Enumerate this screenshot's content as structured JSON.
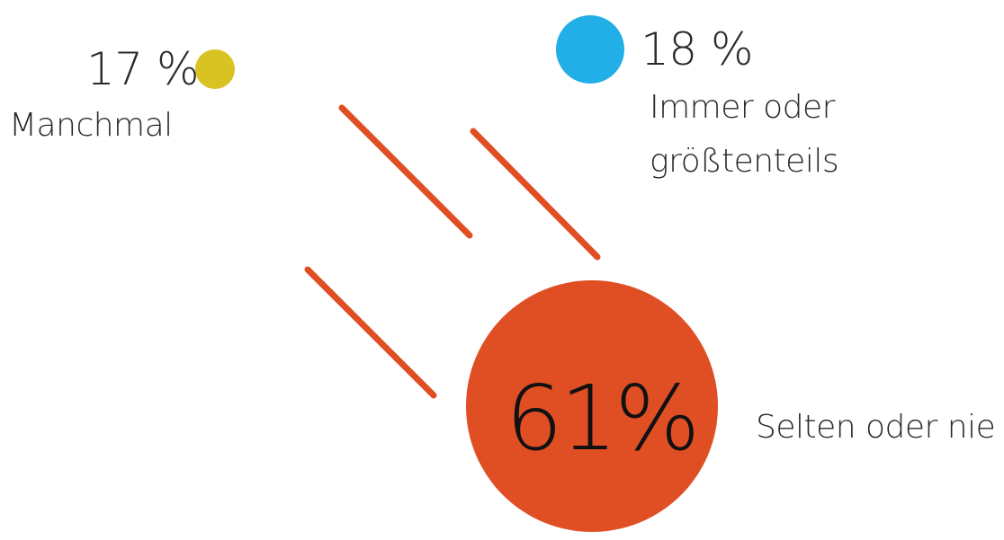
{
  "chart_data": {
    "type": "bubble",
    "title": "",
    "categories": [
      {
        "name": "Manchmal",
        "percent_label": "17 %",
        "value": 17,
        "color": "#d9c322"
      },
      {
        "name": "Immer oder größtenteils",
        "lines": [
          "Immer oder",
          "größtenteils"
        ],
        "percent_label": "18 %",
        "value": 18,
        "color": "#22aee6"
      },
      {
        "name": "Selten oder nie",
        "percent_label": "61%",
        "value": 61,
        "color": "#e04e23"
      }
    ]
  }
}
